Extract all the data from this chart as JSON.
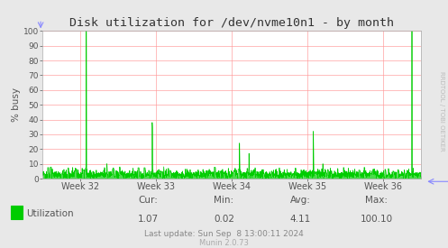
{
  "title": "Disk utilization for /dev/nvme10n1 - by month",
  "ylabel": "% busy",
  "ylim": [
    0,
    100
  ],
  "yticks": [
    0,
    10,
    20,
    30,
    40,
    50,
    60,
    70,
    80,
    90,
    100
  ],
  "xtick_labels": [
    "Week 32",
    "Week 33",
    "Week 34",
    "Week 35",
    "Week 36"
  ],
  "xtick_positions": [
    0.1,
    0.3,
    0.5,
    0.7,
    0.9
  ],
  "bg_color": "#e8e8e8",
  "plot_bg_color": "#ffffff",
  "grid_color": "#ff9999",
  "line_color": "#00cc00",
  "fill_color": "#00cc00",
  "title_color": "#333333",
  "label_color": "#555555",
  "legend_label": "Utilization",
  "cur_val": "1.07",
  "min_val": "0.02",
  "avg_val": "4.11",
  "max_val": "100.10",
  "last_update": "Last update: Sun Sep  8 13:00:11 2024",
  "munin_version": "Munin 2.0.73",
  "watermark": "RRDTOOL / TOBI OETIKER",
  "n_points": 2000,
  "seed": 42
}
